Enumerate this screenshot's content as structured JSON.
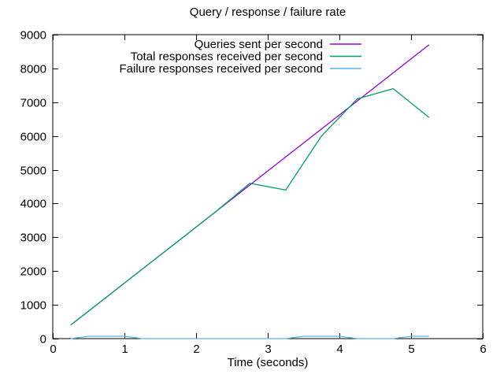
{
  "title": "Query / response / failure rate",
  "chart_data": {
    "type": "line",
    "title": "Query / response / failure rate",
    "xlabel": "Time (seconds)",
    "ylabel": "",
    "xlim": [
      0,
      6
    ],
    "ylim": [
      0,
      9000
    ],
    "xticks": [
      0,
      1,
      2,
      3,
      4,
      5,
      6
    ],
    "yticks": [
      0,
      1000,
      2000,
      3000,
      4000,
      5000,
      6000,
      7000,
      8000,
      9000
    ],
    "grid": false,
    "legend_position": "top-center-inside",
    "border_color": "#000000",
    "background_color": "#ffffff",
    "series": [
      {
        "name": "Queries sent per second",
        "color": "#9400D3",
        "x": [
          0.25,
          0.75,
          1.25,
          1.75,
          2.25,
          2.75,
          3.25,
          3.75,
          4.25,
          4.75,
          5.25
        ],
        "y": [
          400,
          1230,
          2060,
          2890,
          3720,
          4550,
          5380,
          6210,
          7040,
          7870,
          8700
        ]
      },
      {
        "name": "Total responses received per second",
        "color": "#009E73",
        "x": [
          0.25,
          0.75,
          1.25,
          1.75,
          2.25,
          2.75,
          3.25,
          3.75,
          4.25,
          4.75,
          5.25
        ],
        "y": [
          400,
          1230,
          2060,
          2890,
          3720,
          4600,
          4400,
          6000,
          7100,
          7400,
          6550
        ]
      },
      {
        "name": "Failure responses received per second",
        "color": "#56B4E9",
        "x": [
          0.25,
          0.5,
          0.75,
          1.0,
          1.25,
          1.5,
          1.75,
          2.0,
          2.25,
          2.5,
          2.75,
          3.0,
          3.25,
          3.5,
          3.75,
          4.0,
          4.25,
          4.5,
          4.75,
          5.0,
          5.25
        ],
        "y": [
          0,
          70,
          70,
          70,
          0,
          0,
          0,
          0,
          0,
          0,
          0,
          0,
          0,
          70,
          70,
          70,
          0,
          0,
          0,
          70,
          70
        ]
      }
    ]
  }
}
